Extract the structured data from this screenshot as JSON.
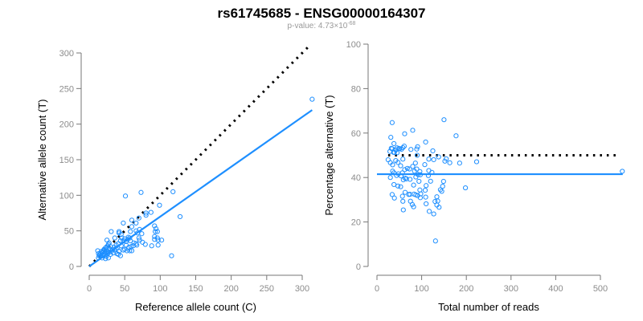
{
  "chart_data": [
    {
      "type": "scatter",
      "title": "rs61745685 - ENSG00000164307",
      "subtitle_prefix": "p-value: 4.73×10",
      "subtitle_exp": "-68",
      "xlabel": "Reference allele count (C)",
      "ylabel": "Alternative allele count (T)",
      "xlim": [
        0,
        300
      ],
      "ylim": [
        0,
        300
      ],
      "xticks": [
        0,
        50,
        100,
        150,
        200,
        250,
        300
      ],
      "yticks": [
        0,
        50,
        100,
        150,
        200,
        250,
        300
      ],
      "point_color": "#1e8fff",
      "fit_line": {
        "slope": 0.7,
        "x_range": [
          0,
          314
        ],
        "color": "#1e8fff"
      },
      "reference_line": {
        "slope": 1,
        "x_range": [
          0,
          312
        ],
        "color": "#000000",
        "style": "dotted"
      },
      "points": [
        [
          314,
          235
        ],
        [
          51,
          99
        ],
        [
          73,
          104
        ],
        [
          118,
          105
        ],
        [
          99,
          86
        ],
        [
          128,
          70
        ],
        [
          87,
          76
        ],
        [
          80,
          75
        ],
        [
          80,
          72
        ],
        [
          60,
          65
        ],
        [
          70,
          68
        ],
        [
          66,
          61
        ],
        [
          48,
          61
        ],
        [
          60,
          56
        ],
        [
          92,
          57
        ],
        [
          94,
          53
        ],
        [
          93,
          49
        ],
        [
          96,
          49
        ],
        [
          92,
          42
        ],
        [
          92,
          38
        ],
        [
          96,
          40
        ],
        [
          102,
          37
        ],
        [
          97,
          37
        ],
        [
          97,
          30
        ],
        [
          88,
          29
        ],
        [
          116,
          15
        ],
        [
          79,
          31
        ],
        [
          75,
          34
        ],
        [
          71,
          37
        ],
        [
          70,
          40
        ],
        [
          66,
          32
        ],
        [
          67,
          30
        ],
        [
          66,
          50
        ],
        [
          68,
          47
        ],
        [
          71,
          52
        ],
        [
          58,
          49
        ],
        [
          57,
          40
        ],
        [
          58,
          36
        ],
        [
          59,
          28
        ],
        [
          57,
          22
        ],
        [
          60,
          22
        ],
        [
          53,
          22
        ],
        [
          50,
          24
        ],
        [
          48,
          23
        ],
        [
          44,
          15
        ],
        [
          42,
          21
        ],
        [
          41,
          17
        ],
        [
          39,
          18
        ],
        [
          31,
          49
        ],
        [
          42,
          49
        ],
        [
          42,
          47
        ],
        [
          45,
          45
        ],
        [
          46,
          40
        ],
        [
          48,
          36
        ],
        [
          50,
          39
        ],
        [
          52,
          35
        ],
        [
          54,
          38
        ],
        [
          55,
          41
        ],
        [
          44,
          36
        ],
        [
          41,
          32
        ],
        [
          38,
          30
        ],
        [
          36,
          40
        ],
        [
          35,
          27
        ],
        [
          33,
          24
        ],
        [
          30,
          28
        ],
        [
          28,
          33
        ],
        [
          27,
          31
        ],
        [
          26,
          29
        ],
        [
          25,
          37
        ],
        [
          24,
          27
        ],
        [
          23,
          26
        ],
        [
          22,
          23
        ],
        [
          22,
          20
        ],
        [
          21,
          24
        ],
        [
          20,
          22
        ],
        [
          19,
          20
        ],
        [
          18,
          19
        ],
        [
          17,
          21
        ],
        [
          16,
          18
        ],
        [
          15,
          17
        ],
        [
          14,
          15
        ],
        [
          13,
          18
        ],
        [
          12,
          22
        ],
        [
          13,
          12
        ],
        [
          16,
          14
        ],
        [
          18,
          12
        ],
        [
          20,
          15
        ],
        [
          22,
          16
        ],
        [
          24,
          14
        ],
        [
          26,
          18
        ],
        [
          28,
          20
        ],
        [
          30,
          17
        ],
        [
          32,
          22
        ],
        [
          34,
          19
        ],
        [
          36,
          23
        ],
        [
          38,
          25
        ],
        [
          40,
          26
        ],
        [
          27,
          12
        ],
        [
          23,
          11
        ],
        [
          19,
          16
        ],
        [
          25,
          22
        ],
        [
          29,
          24
        ],
        [
          45,
          29
        ],
        [
          52,
          30
        ],
        [
          56,
          27
        ],
        [
          63,
          33
        ],
        [
          62,
          29
        ],
        [
          74,
          46
        ]
      ]
    },
    {
      "type": "scatter",
      "xlabel": "Total number of reads",
      "ylabel": "Percentage alternative (T)",
      "xlim": [
        0,
        500
      ],
      "ylim": [
        0,
        100
      ],
      "xticks": [
        0,
        100,
        200,
        300,
        400,
        500
      ],
      "yticks": [
        0,
        20,
        40,
        60,
        80,
        100
      ],
      "derived_from": "points of the first panel: total = C + T, percentage = 100*T/total",
      "fit_line": {
        "y": 41.5,
        "x_range": [
          0,
          550
        ],
        "color": "#1e8fff"
      },
      "reference_line": {
        "y": 50,
        "x_range": [
          25,
          540
        ],
        "color": "#000000",
        "style": "dotted"
      }
    }
  ]
}
